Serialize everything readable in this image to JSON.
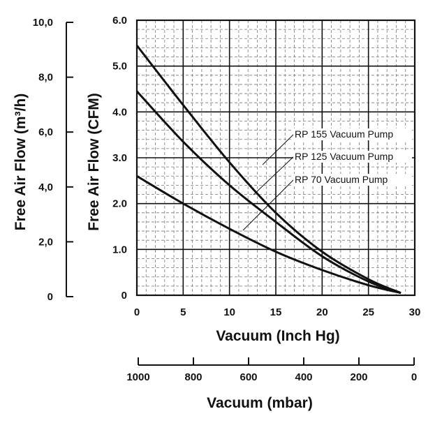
{
  "chart_data": {
    "type": "line",
    "title": "",
    "xlabel": "Vacuum (Inch Hg)",
    "ylabel": "Free Air Flow (CFM)",
    "secondary_ylabel": "Free Air Flow (m³/h)",
    "secondary_xlabel": "Vacuum (mbar)",
    "xlim": [
      0,
      30
    ],
    "ylim": [
      0,
      6.0
    ],
    "secondary_ylim": [
      0,
      10.0
    ],
    "secondary_xlim": [
      1000,
      0
    ],
    "x_ticks": [
      "0",
      "5",
      "10",
      "15",
      "20",
      "25",
      "30"
    ],
    "y_ticks": [
      "0",
      "1.0",
      "2.0",
      "3.0",
      "4.0",
      "5.0",
      "6.0"
    ],
    "secondary_y_ticks": [
      "0",
      "2,0",
      "4,0",
      "6,0",
      "8,0",
      "10,0"
    ],
    "secondary_x_ticks": [
      "1000",
      "800",
      "600",
      "400",
      "200",
      "0"
    ],
    "grid": true,
    "series": [
      {
        "name": "RP 155 Vacuum Pump",
        "x": [
          0,
          5,
          10,
          15,
          20,
          25,
          28.5
        ],
        "y": [
          5.45,
          4.15,
          2.9,
          1.8,
          0.95,
          0.35,
          0.05
        ]
      },
      {
        "name": "RP 125 Vacuum Pump",
        "x": [
          0,
          5,
          10,
          15,
          20,
          25,
          28.5
        ],
        "y": [
          4.45,
          3.35,
          2.4,
          1.6,
          0.85,
          0.3,
          0.05
        ]
      },
      {
        "name": "RP 70 Vacuum Pump",
        "x": [
          0,
          5,
          10,
          15,
          20,
          25,
          28.5
        ],
        "y": [
          2.6,
          2.0,
          1.45,
          0.95,
          0.55,
          0.22,
          0.05
        ]
      }
    ],
    "legend_placement": "right-center",
    "line_color": "#111111"
  }
}
